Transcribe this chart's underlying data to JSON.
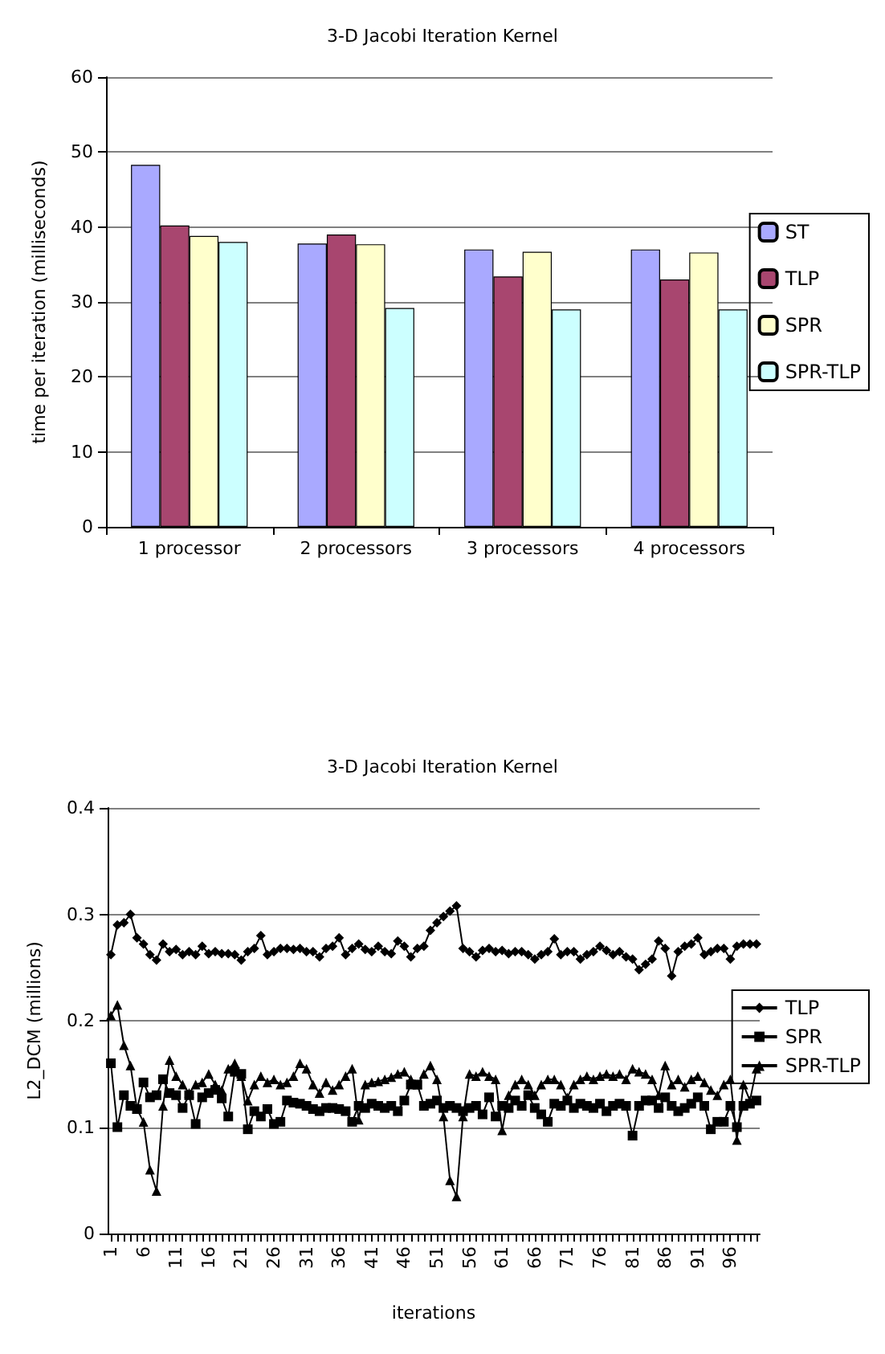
{
  "chart_data": [
    {
      "type": "bar",
      "title": "3-D Jacobi Iteration Kernel",
      "ylabel": "time per iteration (milliseconds)",
      "categories": [
        "1 processor",
        "2 processors",
        "3 processors",
        "4 processors"
      ],
      "series": [
        {
          "name": "ST",
          "color": "#a9a9ff",
          "values": [
            48.3,
            37.8,
            37,
            37
          ]
        },
        {
          "name": "TLP",
          "color": "#a8466f",
          "values": [
            40.2,
            39,
            33.4,
            33
          ]
        },
        {
          "name": "SPR",
          "color": "#ffffcc",
          "values": [
            38.8,
            37.7,
            36.7,
            36.6
          ]
        },
        {
          "name": "SPR-TLP",
          "color": "#ccffff",
          "values": [
            38,
            29.2,
            29,
            29
          ]
        }
      ],
      "ylim": [
        0,
        60
      ],
      "yticks": [
        0,
        10,
        20,
        30,
        40,
        50,
        60
      ],
      "grid": "y",
      "legend": "right"
    },
    {
      "type": "line",
      "title": "3-D Jacobi Iteration Kernel",
      "xlabel": "iterations",
      "ylabel": "L2_DCM (millions)",
      "categories": [
        "1",
        null,
        null,
        null,
        null,
        "6",
        null,
        null,
        null,
        null,
        "11",
        null,
        null,
        null,
        null,
        "16",
        null,
        null,
        null,
        null,
        "21",
        null,
        null,
        null,
        null,
        "26",
        null,
        null,
        null,
        null,
        "31",
        null,
        null,
        null,
        null,
        "36",
        null,
        null,
        null,
        null,
        "41",
        null,
        null,
        null,
        null,
        "46",
        null,
        null,
        null,
        null,
        "51",
        null,
        null,
        null,
        null,
        "56",
        null,
        null,
        null,
        null,
        "61",
        null,
        null,
        null,
        null,
        "66",
        null,
        null,
        null,
        null,
        "71",
        null,
        null,
        null,
        null,
        "76",
        null,
        null,
        null,
        null,
        "81",
        null,
        null,
        null,
        null,
        "86",
        null,
        null,
        null,
        null,
        "91",
        null,
        null,
        null,
        null,
        "96",
        null,
        null,
        null,
        null
      ],
      "series": [
        {
          "name": "TLP",
          "color": "#000000",
          "marker": "diamond",
          "values": [
            0.262,
            0.29,
            0.292,
            0.3,
            0.278,
            0.272,
            0.262,
            0.257,
            0.272,
            0.265,
            0.267,
            0.262,
            0.265,
            0.262,
            0.27,
            0.263,
            0.265,
            0.263,
            0.263,
            0.262,
            0.257,
            0.265,
            0.268,
            0.28,
            0.262,
            0.265,
            0.268,
            0.268,
            0.267,
            0.268,
            0.265,
            0.265,
            0.26,
            0.268,
            0.27,
            0.278,
            0.262,
            0.268,
            0.272,
            0.267,
            0.265,
            0.27,
            0.265,
            0.263,
            0.275,
            0.27,
            0.26,
            0.268,
            0.27,
            0.285,
            0.292,
            0.298,
            0.303,
            0.308,
            0.268,
            0.265,
            0.26,
            0.266,
            0.268,
            0.265,
            0.266,
            0.263,
            0.265,
            0.265,
            0.262,
            0.258,
            0.262,
            0.265,
            0.277,
            0.262,
            0.265,
            0.265,
            0.258,
            0.262,
            0.265,
            0.27,
            0.266,
            0.262,
            0.265,
            0.26,
            0.258,
            0.248,
            0.253,
            0.258,
            0.275,
            0.268,
            0.242,
            0.265,
            0.27,
            0.272,
            0.278,
            0.262,
            0.265,
            0.268,
            0.268,
            0.258,
            0.27,
            0.272,
            0.272,
            0.272
          ]
        },
        {
          "name": "SPR",
          "color": "#000000",
          "marker": "square",
          "values": [
            0.16,
            0.1,
            0.13,
            0.12,
            0.117,
            0.142,
            0.128,
            0.13,
            0.145,
            0.132,
            0.13,
            0.118,
            0.13,
            0.103,
            0.128,
            0.132,
            0.135,
            0.127,
            0.11,
            0.152,
            0.15,
            0.098,
            0.115,
            0.11,
            0.117,
            0.103,
            0.105,
            0.125,
            0.123,
            0.122,
            0.12,
            0.117,
            0.115,
            0.118,
            0.118,
            0.117,
            0.115,
            0.105,
            0.12,
            0.118,
            0.122,
            0.12,
            0.118,
            0.12,
            0.115,
            0.125,
            0.14,
            0.14,
            0.12,
            0.122,
            0.125,
            0.118,
            0.12,
            0.118,
            0.115,
            0.118,
            0.12,
            0.112,
            0.128,
            0.11,
            0.12,
            0.118,
            0.125,
            0.12,
            0.13,
            0.118,
            0.112,
            0.105,
            0.122,
            0.12,
            0.125,
            0.118,
            0.122,
            0.12,
            0.118,
            0.122,
            0.115,
            0.12,
            0.122,
            0.12,
            0.092,
            0.12,
            0.125,
            0.125,
            0.118,
            0.128,
            0.12,
            0.115,
            0.118,
            0.122,
            0.128,
            0.12,
            0.098,
            0.105,
            0.105,
            0.12,
            0.1,
            0.12,
            0.122,
            0.125
          ]
        },
        {
          "name": "SPR-TLP",
          "color": "#000000",
          "marker": "triangle",
          "values": [
            0.205,
            0.215,
            0.177,
            0.158,
            0.117,
            0.105,
            0.06,
            0.04,
            0.12,
            0.163,
            0.148,
            0.14,
            0.132,
            0.14,
            0.142,
            0.15,
            0.14,
            0.135,
            0.155,
            0.16,
            0.148,
            0.125,
            0.14,
            0.148,
            0.142,
            0.145,
            0.14,
            0.142,
            0.148,
            0.16,
            0.155,
            0.14,
            0.132,
            0.142,
            0.135,
            0.14,
            0.148,
            0.155,
            0.107,
            0.14,
            0.142,
            0.143,
            0.145,
            0.147,
            0.15,
            0.152,
            0.145,
            0.14,
            0.15,
            0.158,
            0.145,
            0.11,
            0.05,
            0.035,
            0.11,
            0.15,
            0.148,
            0.152,
            0.148,
            0.145,
            0.097,
            0.13,
            0.14,
            0.145,
            0.14,
            0.13,
            0.14,
            0.145,
            0.145,
            0.14,
            0.128,
            0.14,
            0.145,
            0.148,
            0.145,
            0.148,
            0.15,
            0.148,
            0.15,
            0.145,
            0.155,
            0.152,
            0.15,
            0.145,
            0.13,
            0.158,
            0.14,
            0.145,
            0.138,
            0.145,
            0.148,
            0.142,
            0.135,
            0.13,
            0.14,
            0.145,
            0.088,
            0.14,
            0.125,
            0.155
          ]
        }
      ],
      "ylim": [
        0,
        0.4
      ],
      "yticks": [
        0,
        0.1,
        0.2,
        0.3,
        0.4
      ],
      "grid": "y",
      "legend": "right"
    }
  ]
}
